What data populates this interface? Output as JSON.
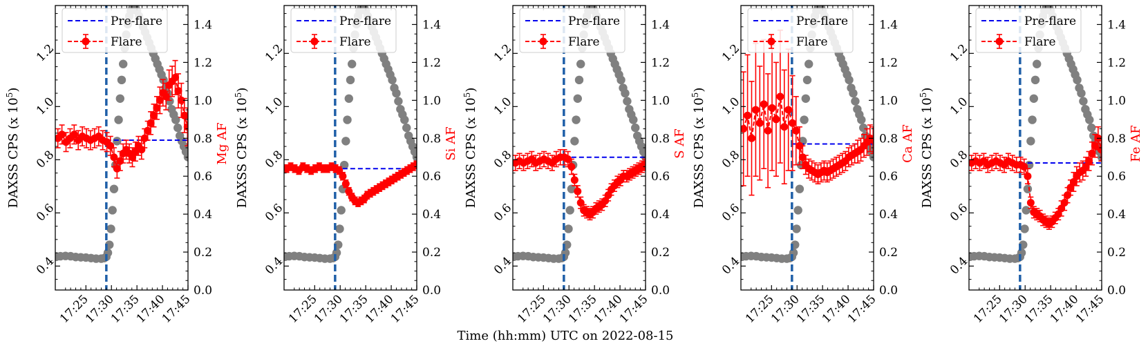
{
  "chart_data": {
    "type": "line",
    "figure_xlabel": "Time (hh:mm) UTC on 2022-08-15",
    "shared": {
      "ylabel_left": "DAXSS CPS (x 10",
      "ylabel_left_exp": "5",
      "ylabel_left_close": ")",
      "xlim_minutes": [
        19,
        45
      ],
      "x_tick_minutes": [
        25,
        30,
        35,
        40,
        45
      ],
      "x_tick_labels": [
        "17:25",
        "17:30",
        "17:35",
        "17:40",
        "17:45"
      ],
      "left_ylim": [
        0.31,
        1.38
      ],
      "left_ticks": [
        0.4,
        0.6,
        0.8,
        1.0,
        1.2
      ],
      "left_tick_labels": [
        "0.4",
        "0.6",
        "0.8",
        "1.0",
        "1.2"
      ],
      "right_ylim": [
        0.0,
        1.5
      ],
      "right_ticks": [
        0.0,
        0.2,
        0.4,
        0.6,
        0.8,
        1.0,
        1.2,
        1.4
      ],
      "right_tick_labels": [
        "0.0",
        "0.2",
        "0.4",
        "0.6",
        "0.8",
        "1.0",
        "1.2",
        "1.4"
      ],
      "flare_start_minute": 29.0,
      "legend": [
        "Pre-flare",
        "Flare"
      ],
      "counts_series": {
        "name": "DAXSS CPS",
        "x": [
          19.2,
          20,
          21,
          22,
          23,
          24,
          25,
          26,
          27,
          28,
          28.6,
          29.0,
          29.3,
          29.6,
          29.9,
          30.2,
          30.5,
          30.8,
          31.1,
          31.4,
          31.7,
          32.0,
          32.3,
          32.6,
          32.9,
          33.2,
          33.5,
          33.8,
          34.1,
          34.4,
          34.7,
          35.0,
          35.4,
          35.8,
          36.2,
          36.6,
          37.0,
          37.4,
          37.8,
          38.2,
          38.6,
          39.0,
          39.4,
          39.8,
          40.2,
          40.6,
          41.0,
          41.4,
          41.8,
          42.2,
          42.6,
          43.0,
          43.4,
          43.8,
          44.2,
          44.6,
          45.0
        ],
        "y": [
          0.435,
          0.437,
          0.438,
          0.437,
          0.434,
          0.433,
          0.432,
          0.43,
          0.428,
          0.428,
          0.43,
          0.435,
          0.45,
          0.48,
          0.54,
          0.61,
          0.69,
          0.78,
          0.87,
          0.95,
          1.03,
          1.1,
          1.16,
          1.22,
          1.27,
          1.31,
          1.34,
          1.36,
          1.37,
          1.375,
          1.37,
          1.36,
          1.34,
          1.32,
          1.3,
          1.28,
          1.26,
          1.24,
          1.22,
          1.2,
          1.18,
          1.16,
          1.14,
          1.12,
          1.1,
          1.07,
          1.05,
          1.02,
          0.99,
          0.97,
          0.95,
          0.92,
          0.89,
          0.87,
          0.85,
          0.83,
          0.81
        ]
      }
    },
    "panels": [
      {
        "element": "Mg",
        "ylabel_right": "Mg AF",
        "preflare_level": 0.79,
        "flare_x": [
          19.5,
          20.3,
          21.1,
          21.9,
          22.7,
          23.5,
          24.3,
          25.1,
          25.9,
          26.7,
          27.5,
          28.3,
          29.1,
          29.8,
          30.5,
          31.1,
          31.7,
          32.3,
          32.9,
          33.5,
          34.1,
          34.7,
          35.3,
          35.9,
          36.5,
          37.1,
          37.7,
          38.3,
          38.9,
          39.5,
          40.1,
          40.7,
          41.3,
          41.9,
          42.5,
          43.1,
          43.7,
          44.3,
          44.9
        ],
        "flare_y": [
          0.8,
          0.82,
          0.78,
          0.8,
          0.82,
          0.79,
          0.81,
          0.8,
          0.79,
          0.8,
          0.81,
          0.79,
          0.78,
          0.76,
          0.7,
          0.64,
          0.68,
          0.72,
          0.74,
          0.72,
          0.7,
          0.73,
          0.76,
          0.74,
          0.8,
          0.84,
          0.88,
          0.92,
          0.96,
          1.0,
          1.04,
          1.02,
          1.08,
          1.1,
          1.12,
          1.05,
          1.0,
          0.92,
          0.86
        ],
        "flare_err": [
          0.05,
          0.05,
          0.05,
          0.05,
          0.05,
          0.05,
          0.05,
          0.05,
          0.05,
          0.05,
          0.05,
          0.05,
          0.05,
          0.05,
          0.05,
          0.05,
          0.05,
          0.05,
          0.05,
          0.05,
          0.05,
          0.05,
          0.05,
          0.05,
          0.05,
          0.05,
          0.06,
          0.06,
          0.06,
          0.07,
          0.07,
          0.07,
          0.08,
          0.08,
          0.09,
          0.09,
          0.09,
          0.09,
          0.1
        ]
      },
      {
        "element": "Si",
        "ylabel_right": "Si AF",
        "preflare_level": 0.64,
        "flare_x": [
          19.5,
          20.3,
          21.1,
          21.9,
          22.7,
          23.5,
          24.3,
          25.1,
          25.9,
          26.7,
          27.5,
          28.3,
          29.1,
          29.8,
          30.5,
          31.1,
          31.7,
          32.3,
          32.9,
          33.5,
          34.1,
          34.7,
          35.3,
          35.9,
          36.5,
          37.1,
          37.7,
          38.3,
          38.9,
          39.5,
          40.1,
          40.7,
          41.3,
          41.9,
          42.5,
          43.1,
          43.7,
          44.3,
          44.9
        ],
        "flare_y": [
          0.64,
          0.65,
          0.64,
          0.63,
          0.65,
          0.64,
          0.63,
          0.64,
          0.65,
          0.64,
          0.64,
          0.65,
          0.64,
          0.63,
          0.6,
          0.56,
          0.52,
          0.49,
          0.47,
          0.46,
          0.47,
          0.48,
          0.5,
          0.51,
          0.52,
          0.53,
          0.54,
          0.55,
          0.56,
          0.57,
          0.58,
          0.59,
          0.6,
          0.61,
          0.62,
          0.63,
          0.64,
          0.65,
          0.66
        ],
        "flare_err": [
          0.02,
          0.02,
          0.02,
          0.02,
          0.02,
          0.02,
          0.02,
          0.02,
          0.02,
          0.02,
          0.02,
          0.02,
          0.02,
          0.02,
          0.02,
          0.02,
          0.02,
          0.02,
          0.02,
          0.02,
          0.02,
          0.02,
          0.02,
          0.02,
          0.02,
          0.02,
          0.02,
          0.02,
          0.02,
          0.02,
          0.02,
          0.02,
          0.02,
          0.02,
          0.02,
          0.02,
          0.02,
          0.02,
          0.02
        ]
      },
      {
        "element": "S",
        "ylabel_right": "S AF",
        "preflare_level": 0.7,
        "flare_x": [
          19.5,
          20.3,
          21.1,
          21.9,
          22.7,
          23.5,
          24.3,
          25.1,
          25.9,
          26.7,
          27.5,
          28.3,
          29.1,
          29.8,
          30.5,
          31.1,
          31.7,
          32.3,
          32.9,
          33.5,
          34.1,
          34.7,
          35.3,
          35.9,
          36.5,
          37.1,
          37.7,
          38.3,
          38.9,
          39.5,
          40.1,
          40.7,
          41.3,
          41.9,
          42.5,
          43.1,
          43.7,
          44.3,
          44.9
        ],
        "flare_y": [
          0.67,
          0.68,
          0.67,
          0.68,
          0.69,
          0.67,
          0.68,
          0.69,
          0.68,
          0.67,
          0.69,
          0.7,
          0.7,
          0.69,
          0.65,
          0.58,
          0.52,
          0.46,
          0.42,
          0.41,
          0.4,
          0.41,
          0.43,
          0.44,
          0.45,
          0.47,
          0.5,
          0.53,
          0.55,
          0.57,
          0.58,
          0.6,
          0.6,
          0.61,
          0.62,
          0.63,
          0.64,
          0.65,
          0.66
        ],
        "flare_err": [
          0.04,
          0.04,
          0.04,
          0.04,
          0.04,
          0.04,
          0.04,
          0.04,
          0.04,
          0.04,
          0.04,
          0.04,
          0.04,
          0.04,
          0.04,
          0.03,
          0.03,
          0.03,
          0.03,
          0.03,
          0.03,
          0.03,
          0.03,
          0.03,
          0.03,
          0.03,
          0.03,
          0.03,
          0.03,
          0.03,
          0.03,
          0.03,
          0.03,
          0.03,
          0.03,
          0.03,
          0.03,
          0.03,
          0.03
        ]
      },
      {
        "element": "Ca",
        "ylabel_right": "Ca AF",
        "preflare_level": 0.77,
        "flare_x": [
          19.5,
          20.3,
          21.1,
          21.9,
          22.7,
          23.5,
          24.3,
          25.1,
          25.9,
          26.7,
          27.5,
          28.3,
          29.1,
          29.8,
          30.5,
          31.1,
          31.7,
          32.3,
          32.9,
          33.5,
          34.1,
          34.7,
          35.3,
          35.9,
          36.5,
          37.1,
          37.7,
          38.3,
          38.9,
          39.5,
          40.1,
          40.7,
          41.3,
          41.9,
          42.5,
          43.1,
          43.7,
          44.3,
          44.9
        ],
        "flare_y": [
          0.85,
          0.92,
          0.8,
          0.95,
          0.88,
          0.98,
          0.84,
          0.96,
          0.9,
          1.02,
          0.86,
          0.95,
          0.88,
          0.84,
          0.76,
          0.7,
          0.66,
          0.64,
          0.63,
          0.62,
          0.61,
          0.62,
          0.63,
          0.62,
          0.63,
          0.64,
          0.65,
          0.66,
          0.67,
          0.68,
          0.7,
          0.71,
          0.72,
          0.73,
          0.74,
          0.76,
          0.78,
          0.8,
          0.79
        ],
        "flare_err": [
          0.3,
          0.32,
          0.3,
          0.35,
          0.3,
          0.34,
          0.3,
          0.33,
          0.3,
          0.35,
          0.3,
          0.32,
          0.25,
          0.18,
          0.1,
          0.06,
          0.05,
          0.05,
          0.05,
          0.05,
          0.05,
          0.05,
          0.05,
          0.05,
          0.05,
          0.05,
          0.05,
          0.05,
          0.05,
          0.05,
          0.05,
          0.05,
          0.05,
          0.06,
          0.06,
          0.06,
          0.07,
          0.07,
          0.07
        ]
      },
      {
        "element": "Fe",
        "ylabel_right": "Fe AF",
        "preflare_level": 0.67,
        "flare_x": [
          19.5,
          20.3,
          21.1,
          21.9,
          22.7,
          23.5,
          24.3,
          25.1,
          25.9,
          26.7,
          27.5,
          28.3,
          29.1,
          29.8,
          30.5,
          31.1,
          31.7,
          32.3,
          32.9,
          33.5,
          34.1,
          34.7,
          35.3,
          35.9,
          36.5,
          37.1,
          37.7,
          38.3,
          38.9,
          39.5,
          40.1,
          40.7,
          41.3,
          41.9,
          42.5,
          43.1,
          43.7,
          44.3,
          44.9
        ],
        "flare_y": [
          0.67,
          0.68,
          0.67,
          0.68,
          0.66,
          0.67,
          0.68,
          0.67,
          0.66,
          0.68,
          0.67,
          0.66,
          0.66,
          0.65,
          0.6,
          0.46,
          0.41,
          0.4,
          0.39,
          0.37,
          0.36,
          0.35,
          0.36,
          0.38,
          0.4,
          0.43,
          0.46,
          0.5,
          0.54,
          0.57,
          0.6,
          0.62,
          0.63,
          0.65,
          0.68,
          0.72,
          0.76,
          0.8,
          0.74
        ],
        "flare_err": [
          0.04,
          0.04,
          0.04,
          0.04,
          0.04,
          0.04,
          0.04,
          0.04,
          0.04,
          0.04,
          0.04,
          0.04,
          0.04,
          0.04,
          0.04,
          0.03,
          0.03,
          0.03,
          0.03,
          0.03,
          0.03,
          0.03,
          0.03,
          0.03,
          0.03,
          0.04,
          0.04,
          0.04,
          0.04,
          0.05,
          0.05,
          0.05,
          0.05,
          0.05,
          0.05,
          0.06,
          0.06,
          0.06,
          0.06
        ]
      }
    ]
  }
}
